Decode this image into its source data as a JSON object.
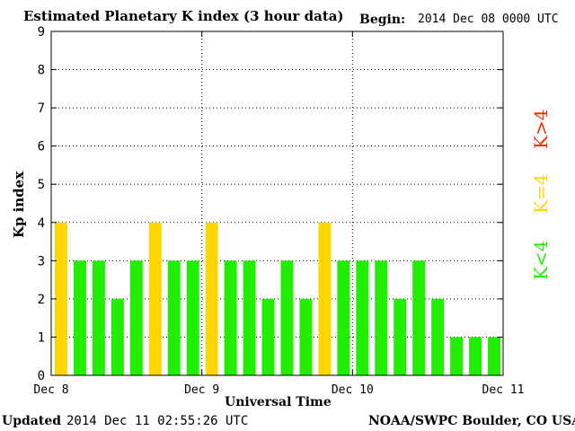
{
  "header": {
    "title": "Estimated Planetary K index (3 hour data)",
    "begin_label": "Begin:",
    "begin_value": "2014 Dec 08 0000 UTC"
  },
  "footer": {
    "updated_label": "Updated",
    "updated_value": "2014 Dec 11 02:55:26 UTC",
    "credit": "NOAA/SWPC Boulder, CO USA"
  },
  "legend": {
    "high": {
      "label": "K>4",
      "color": "#ff2a00"
    },
    "equal": {
      "label": "K=4",
      "color": "#ffd700"
    },
    "low": {
      "label": "K<4",
      "color": "#22ee00"
    }
  },
  "chart_data": {
    "type": "bar",
    "xlabel": "Universal Time",
    "ylabel": "Kp index",
    "ylim": [
      0,
      9
    ],
    "yticks": [
      "0",
      "1",
      "2",
      "3",
      "4",
      "5",
      "6",
      "7",
      "8",
      "9"
    ],
    "x_ticks": [
      "Dec 8",
      "Dec 9",
      "Dec 10",
      "Dec 11"
    ],
    "bins_per_day": 8,
    "values": [
      4,
      3,
      3,
      2,
      3,
      4,
      3,
      3,
      4,
      3,
      3,
      2,
      3,
      2,
      4,
      3,
      3,
      3,
      2,
      3,
      2,
      1,
      1,
      1
    ],
    "grid": true
  }
}
